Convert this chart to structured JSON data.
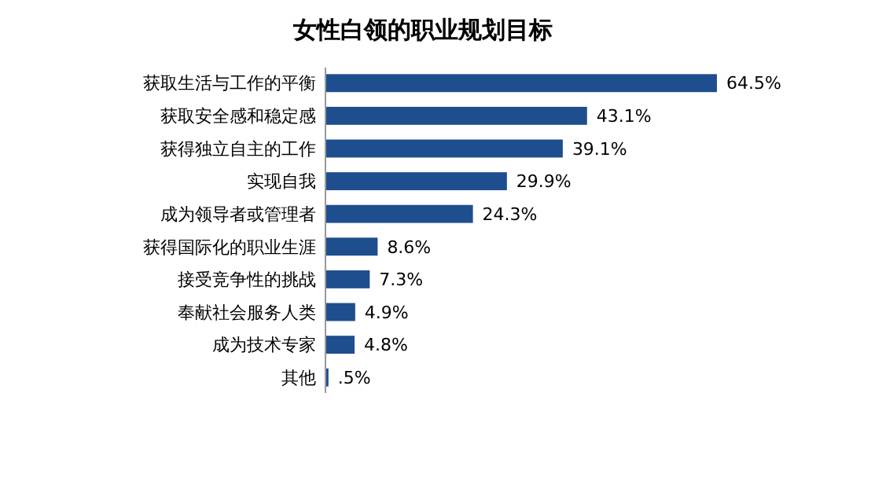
{
  "chart_data": {
    "type": "bar",
    "orientation": "horizontal",
    "title": "女性白领的职业规划目标",
    "categories": [
      "获取生活与工作的平衡",
      "获取安全感和稳定感",
      "获得独立自主的工作",
      "实现自我",
      "成为领导者或管理者",
      "获得国际化的职业生涯",
      "接受竞争性的挑战",
      "奉献社会服务人类",
      "成为技术专家",
      "其他"
    ],
    "values": [
      64.5,
      43.1,
      39.1,
      29.9,
      24.3,
      8.6,
      7.3,
      4.9,
      4.8,
      0.5
    ],
    "value_labels": [
      "64.5%",
      "43.1%",
      "39.1%",
      "29.9%",
      "24.3%",
      "8.6%",
      "7.3%",
      "4.9%",
      "4.8%",
      ".5%"
    ],
    "color": "#1f4e8f"
  }
}
